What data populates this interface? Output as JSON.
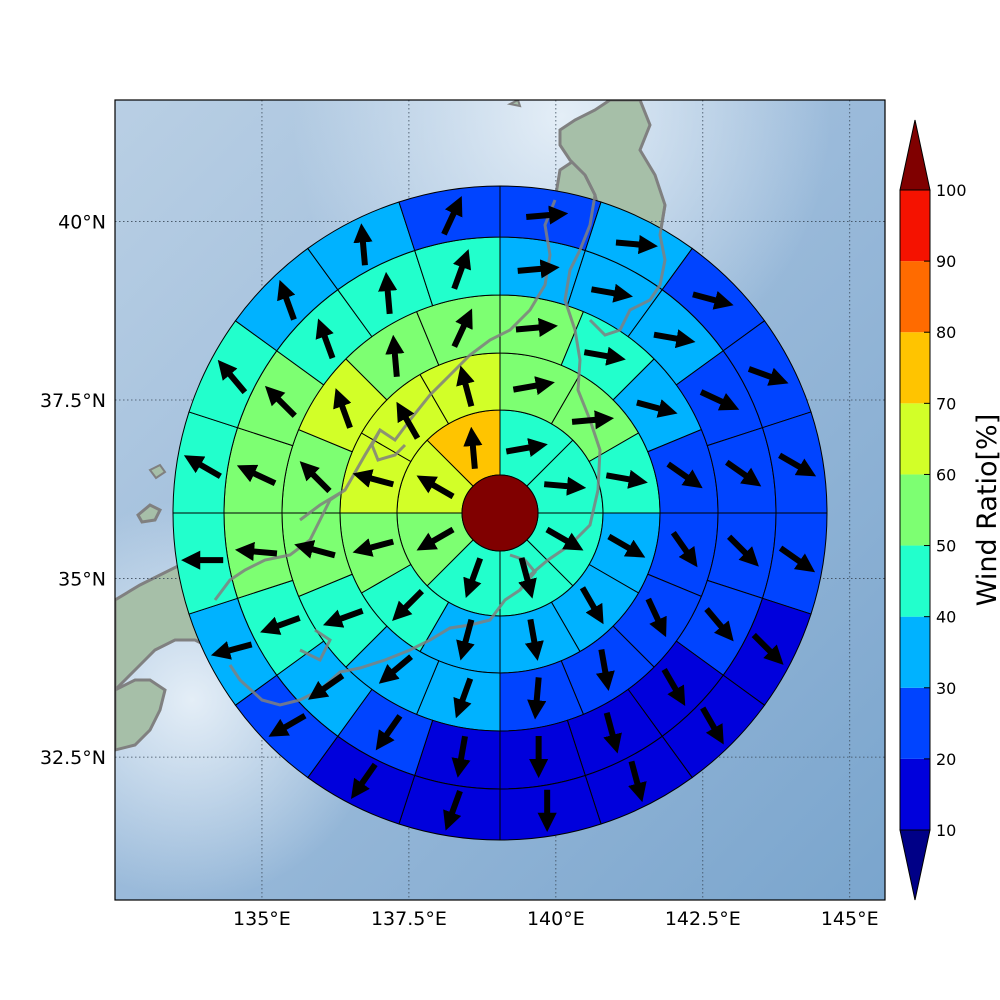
{
  "map": {
    "lon_ticks": [
      "135°E",
      "137.5°E",
      "140°E",
      "142.5°E",
      "145°E"
    ],
    "lat_ticks": [
      "40°N",
      "37.5°N",
      "35°N",
      "32.5°N"
    ],
    "lon_tick_values": [
      135,
      137.5,
      140,
      142.5,
      145
    ],
    "lat_tick_values": [
      40,
      37.5,
      35,
      32.5
    ],
    "lon_range": [
      132.5,
      145.6
    ],
    "lat_range": [
      30.5,
      41.7
    ],
    "grid": true,
    "coastline_color": "#808080",
    "ocean_color": "#8cb2d6",
    "land_color": "#9bb8a0"
  },
  "colorbar": {
    "label": "Wind Ratio[%]",
    "ticks": [
      "10",
      "20",
      "30",
      "40",
      "50",
      "60",
      "70",
      "80",
      "90",
      "100"
    ],
    "levels": [
      10,
      20,
      30,
      40,
      50,
      60,
      70,
      80,
      90,
      100
    ],
    "colors": [
      "#0000dc",
      "#0044ff",
      "#00b2ff",
      "#22ffcc",
      "#7dff72",
      "#d2ff28",
      "#ffc400",
      "#ff6b00",
      "#f51200"
    ],
    "under_color": "#000087",
    "over_color": "#800000",
    "extend": "both"
  },
  "chart_data": {
    "type": "polar-grid",
    "center": {
      "lon": 139.0,
      "lat": 36.0,
      "value_color": "#800000"
    },
    "rings": [
      {
        "sectors": 8,
        "ratios": [
          45,
          45,
          45,
          45,
          45,
          55,
          65,
          75
        ]
      },
      {
        "sectors": 12,
        "ratios": [
          55,
          55,
          45,
          35,
          35,
          35,
          35,
          45,
          55,
          65,
          65,
          65
        ]
      },
      {
        "sectors": 16,
        "ratios": [
          55,
          45,
          35,
          25,
          25,
          25,
          25,
          25,
          35,
          35,
          45,
          55,
          55,
          65,
          55,
          55
        ]
      },
      {
        "sectors": 20,
        "ratios": [
          35,
          35,
          35,
          25,
          25,
          25,
          25,
          15,
          15,
          15,
          15,
          25,
          35,
          45,
          55,
          55,
          55,
          45,
          45,
          45
        ]
      },
      {
        "sectors": 20,
        "ratios": [
          25,
          35,
          25,
          25,
          25,
          25,
          15,
          15,
          15,
          15,
          15,
          15,
          25,
          35,
          45,
          45,
          45,
          35,
          35,
          25
        ]
      }
    ],
    "wind_directions_deg": [
      [
        80,
        95,
        120,
        165,
        200,
        240,
        300,
        355
      ],
      [
        80,
        85,
        100,
        120,
        150,
        170,
        195,
        225,
        255,
        285,
        330,
        345
      ],
      [
        85,
        100,
        105,
        125,
        145,
        155,
        170,
        185,
        200,
        230,
        250,
        285,
        315,
        340,
        355,
        25
      ],
      [
        85,
        100,
        100,
        115,
        125,
        135,
        140,
        150,
        165,
        180,
        190,
        215,
        235,
        250,
        275,
        295,
        315,
        340,
        355,
        20
      ],
      [
        85,
        95,
        105,
        110,
        120,
        125,
        135,
        150,
        165,
        180,
        200,
        215,
        240,
        255,
        270,
        300,
        320,
        340,
        355,
        25
      ]
    ]
  }
}
